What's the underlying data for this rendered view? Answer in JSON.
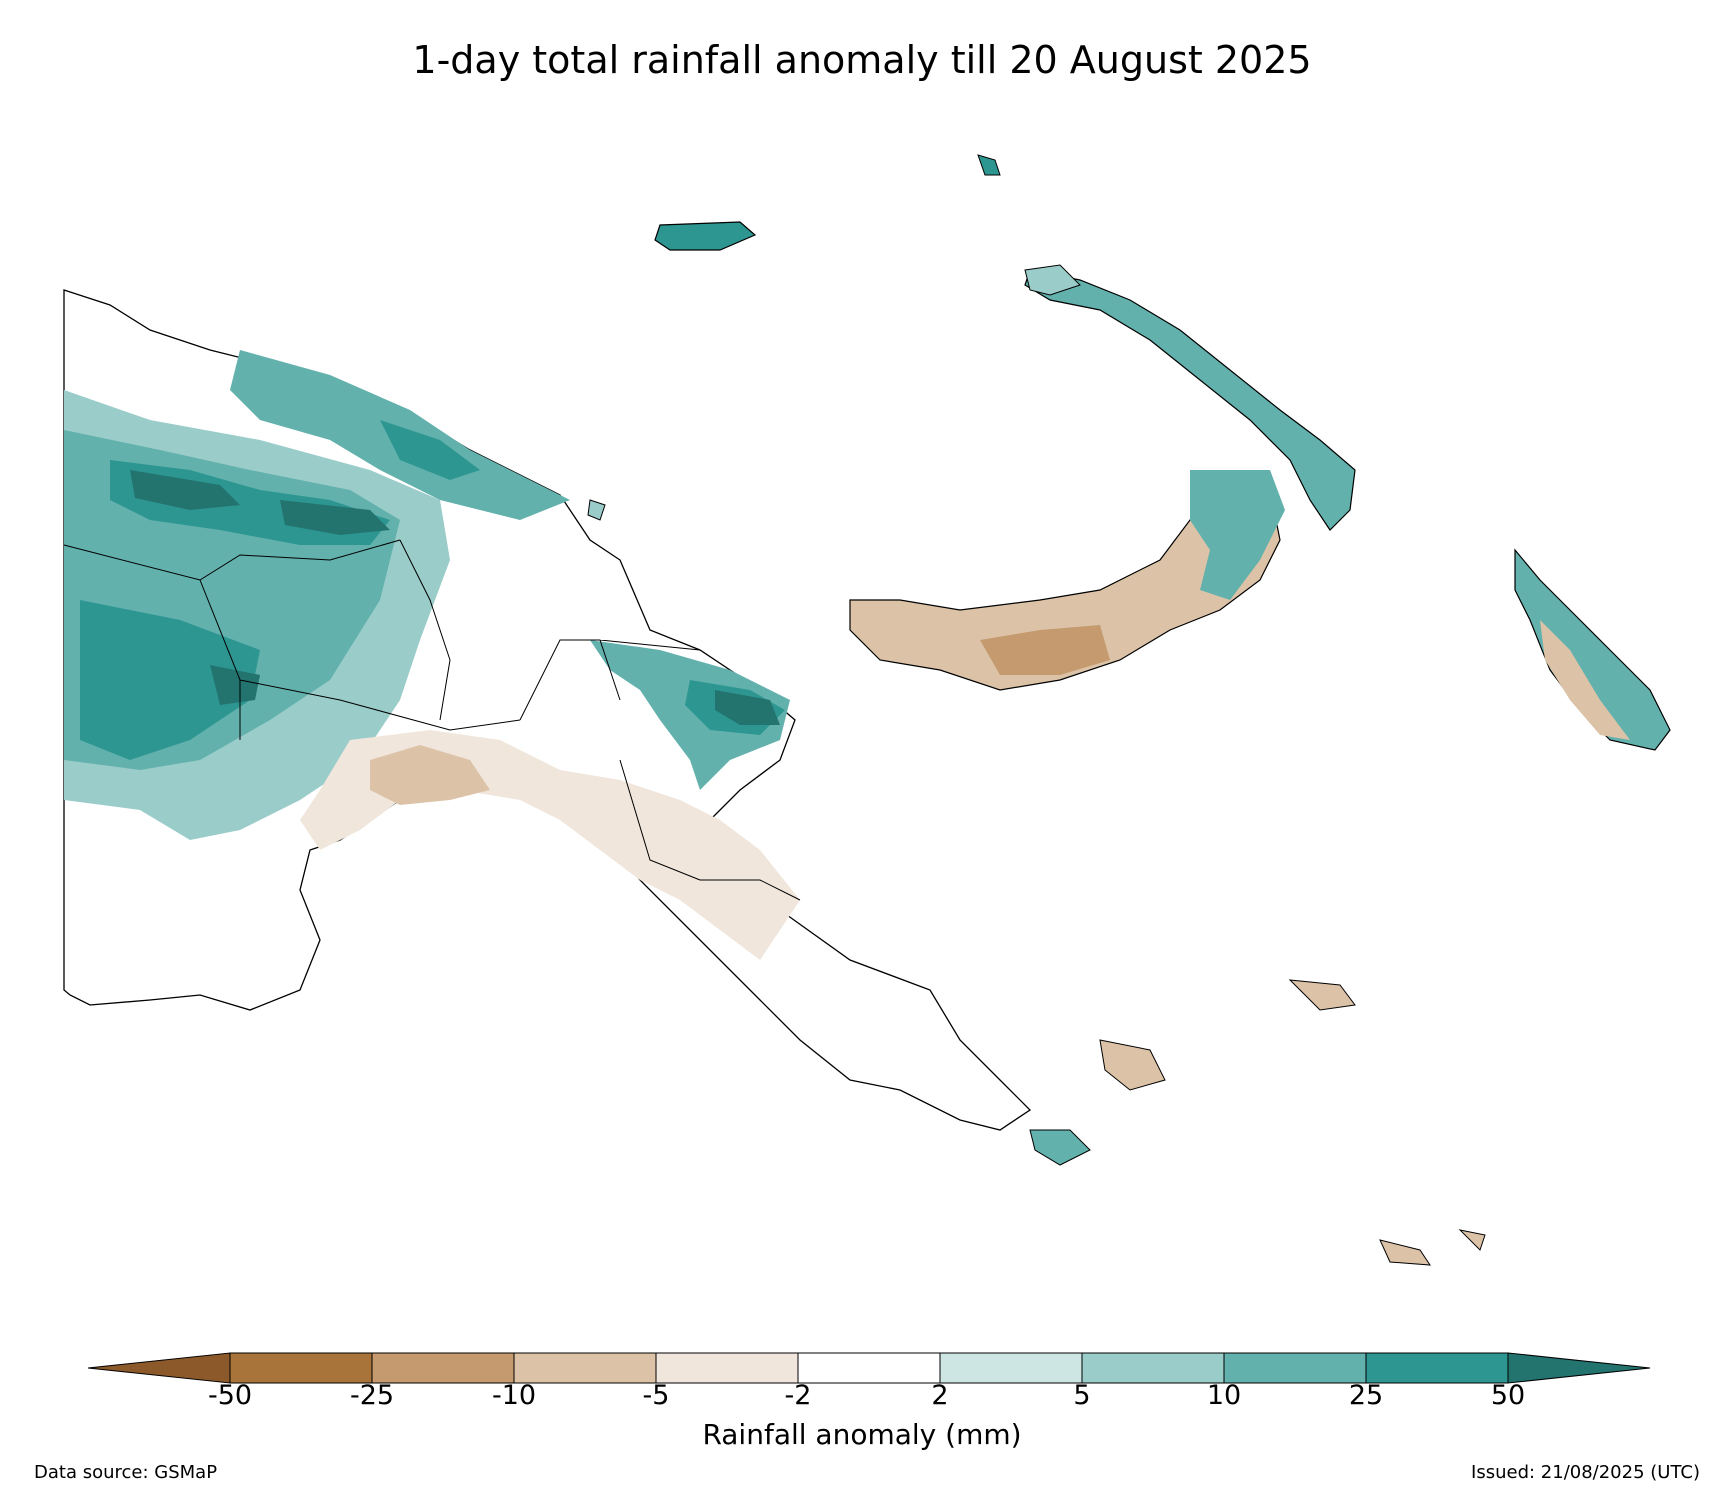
{
  "title": "1-day total rainfall anomaly till 20 August 2025",
  "legend": {
    "label": "Rainfall anomaly (mm)",
    "ticks": [
      "-50",
      "-25",
      "-10",
      "-5",
      "-2",
      "2",
      "5",
      "10",
      "25",
      "50"
    ],
    "colors": {
      "under_-50": "#8c5a2a",
      "-50_-25": "#a8743a",
      "-25_-10": "#c49a6e",
      "-10_-5": "#dcc3a8",
      "-5_-2": "#f0e6dc",
      "-2_2": "#ffffff",
      "2_5": "#cde6e4",
      "5_10": "#9accc9",
      "10_25": "#62b1ad",
      "25_50": "#2d9691",
      "over_50": "#23736f"
    }
  },
  "footer": {
    "source": "Data source: GSMaP",
    "issued": "Issued: 21/08/2025 (UTC)"
  }
}
